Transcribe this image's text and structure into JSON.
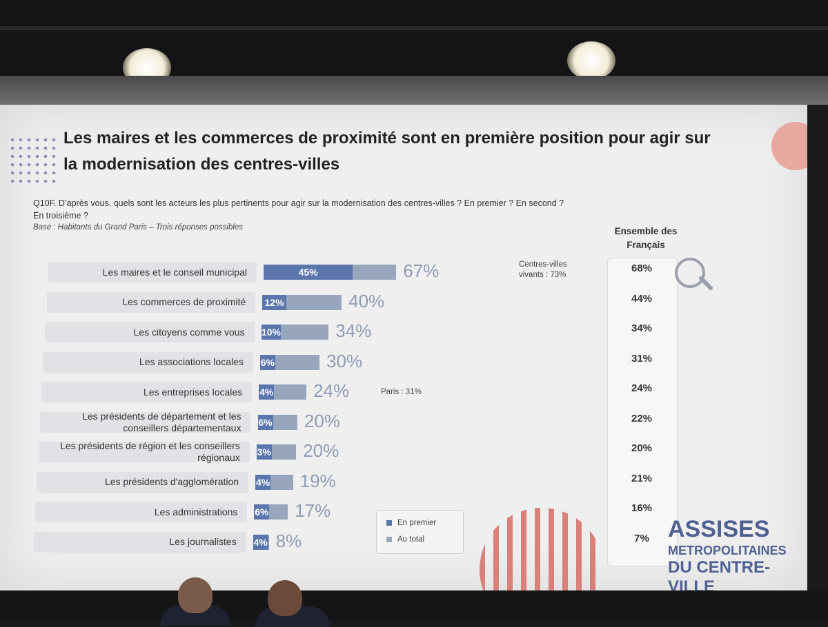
{
  "slide": {
    "title": "Les maires et les commerces de proximité sont en première position pour agir sur la modernisation des centres-villes",
    "question": "Q10F. D’après vous, quels sont les acteurs les plus pertinents pour agir sur la modernisation des centres-villes ? En premier ? En second ? En troisième ?",
    "base": "Base : Habitants du Grand Paris – Trois réponses possibles",
    "ensemble_header": "Ensemble des Français",
    "notes": [
      {
        "text": "Centres-villes vivants : 73%"
      },
      {
        "text": "Paris : 31%"
      }
    ],
    "logo": {
      "line1": "ASSISES",
      "line2": "METROPOLITAINES",
      "line3": "DU CENTRE-VILLE"
    },
    "accent_colors": {
      "first": "#5a76ad",
      "total": "#97a6bd",
      "total_text": "#8f9cb3",
      "logo_red": "#d9807a"
    }
  },
  "chart_data": {
    "type": "bar",
    "orientation": "horizontal",
    "categories": [
      "Les maires et le conseil municipal",
      "Les commerces de proximité",
      "Les citoyens comme vous",
      "Les associations locales",
      "Les entreprises locales",
      "Les présidents de département et les conseillers départementaux",
      "Les présidents de région et les conseillers régionaux",
      "Les présidents d'agglomération",
      "Les administrations",
      "Les journalistes"
    ],
    "series": [
      {
        "name": "En premier",
        "values": [
          45,
          12,
          10,
          6,
          4,
          6,
          3,
          4,
          6,
          4
        ],
        "labels": [
          "45%",
          "12%",
          "10%",
          "6%",
          "4%",
          "6%",
          "3%",
          "4%",
          "6%",
          "4%"
        ]
      },
      {
        "name": "Au total",
        "values": [
          67,
          40,
          34,
          30,
          24,
          20,
          20,
          19,
          17,
          8
        ],
        "labels": [
          "67%",
          "40%",
          "34%",
          "30%",
          "24%",
          "20%",
          "20%",
          "19%",
          "17%",
          "8%"
        ]
      }
    ],
    "ensemble": {
      "values": [
        68,
        44,
        34,
        31,
        24,
        22,
        20,
        21,
        16,
        7
      ],
      "labels": [
        "68%",
        "44%",
        "34%",
        "31%",
        "24%",
        "22%",
        "20%",
        "21%",
        "16%",
        "7%"
      ]
    },
    "legend": {
      "position": "bottom-center",
      "entries": [
        "En premier",
        "Au total"
      ]
    }
  }
}
